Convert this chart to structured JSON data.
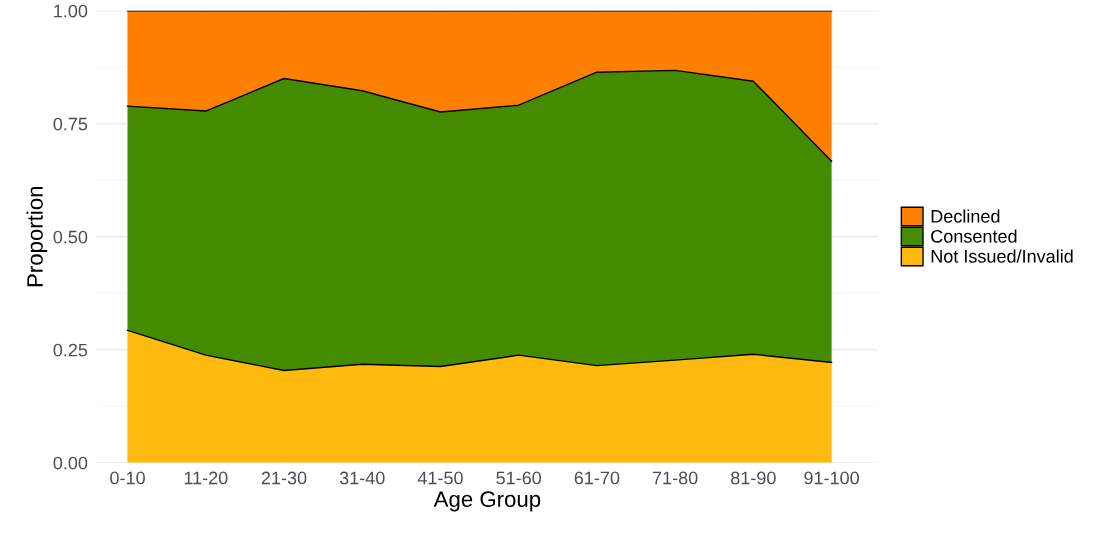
{
  "chart_data": {
    "type": "area",
    "stacked": true,
    "xlabel": "Age Group",
    "ylabel": "Proportion",
    "categories": [
      "0-10",
      "11-20",
      "21-30",
      "31-40",
      "41-50",
      "51-60",
      "61-70",
      "71-80",
      "81-90",
      "91-100"
    ],
    "series": [
      {
        "name": "Not Issued/Invalid",
        "color": "#ffb90f",
        "values": [
          0.293,
          0.238,
          0.204,
          0.218,
          0.213,
          0.238,
          0.215,
          0.227,
          0.24,
          0.222
        ]
      },
      {
        "name": "Consented",
        "color": "#458b00",
        "values": [
          0.496,
          0.54,
          0.646,
          0.605,
          0.563,
          0.553,
          0.649,
          0.641,
          0.604,
          0.445
        ]
      },
      {
        "name": "Declined",
        "color": "#ff7f00",
        "values": [
          0.211,
          0.222,
          0.15,
          0.177,
          0.224,
          0.209,
          0.136,
          0.132,
          0.156,
          0.333
        ]
      }
    ],
    "ylim": [
      0,
      1
    ],
    "yticks": [
      {
        "value": 0,
        "label": "0.00"
      },
      {
        "value": 0.25,
        "label": "0.25"
      },
      {
        "value": 0.5,
        "label": "0.50"
      },
      {
        "value": 0.75,
        "label": "0.75"
      },
      {
        "value": 1,
        "label": "1.00"
      }
    ],
    "grid": true,
    "legend": "right"
  }
}
